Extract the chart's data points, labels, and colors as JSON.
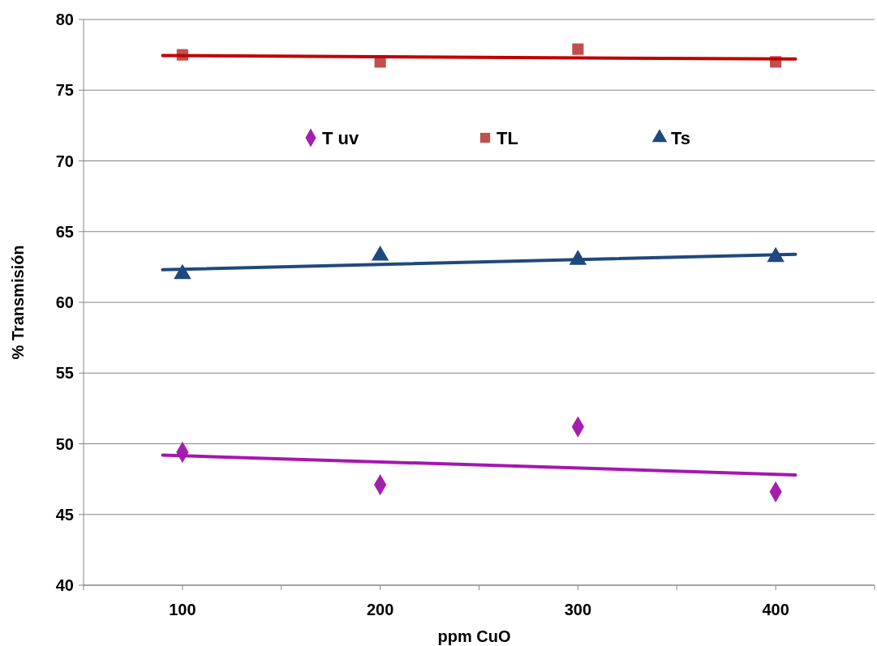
{
  "chart_data": {
    "type": "scatter",
    "xlabel": "ppm CuO",
    "ylabel": "% Transmisión",
    "xlim": [
      50,
      450
    ],
    "ylim": [
      40,
      80
    ],
    "xticks": [
      {
        "value": 50,
        "label": null
      },
      100,
      {
        "value": 150,
        "label": null
      },
      200,
      {
        "value": 250,
        "label": null
      },
      300,
      {
        "value": 350,
        "label": null
      },
      400,
      {
        "value": 450,
        "label": null
      }
    ],
    "yticks": [
      40,
      45,
      50,
      55,
      60,
      65,
      70,
      75,
      80
    ],
    "grid": "y",
    "legend": "top",
    "series": [
      {
        "name": "T uv",
        "color": "#a51fae",
        "marker": "diamond",
        "x": [
          100,
          200,
          300,
          400
        ],
        "values": [
          49.4,
          47.1,
          51.2,
          46.6
        ]
      },
      {
        "name": "TL",
        "color": "#c0504d",
        "marker": "square",
        "x": [
          100,
          200,
          300,
          400
        ],
        "values": [
          77.5,
          77.0,
          77.9,
          77.0
        ]
      },
      {
        "name": "Ts",
        "color": "#1f497d",
        "marker": "triangle",
        "x": [
          100,
          200,
          300,
          400
        ],
        "values": [
          62.0,
          63.3,
          63.0,
          63.2
        ]
      },
      {
        "type": "line",
        "color": "#a616b0",
        "marker": "none",
        "x": [
          90,
          410
        ],
        "values": [
          49.2,
          47.8
        ]
      },
      {
        "type": "line",
        "color": "#c00000",
        "marker": "none",
        "x": [
          90,
          410
        ],
        "values": [
          77.45,
          77.2
        ]
      },
      {
        "type": "line",
        "color": "#1f497d",
        "marker": "none",
        "x": [
          90,
          410
        ],
        "values": [
          62.3,
          63.4
        ]
      }
    ]
  }
}
